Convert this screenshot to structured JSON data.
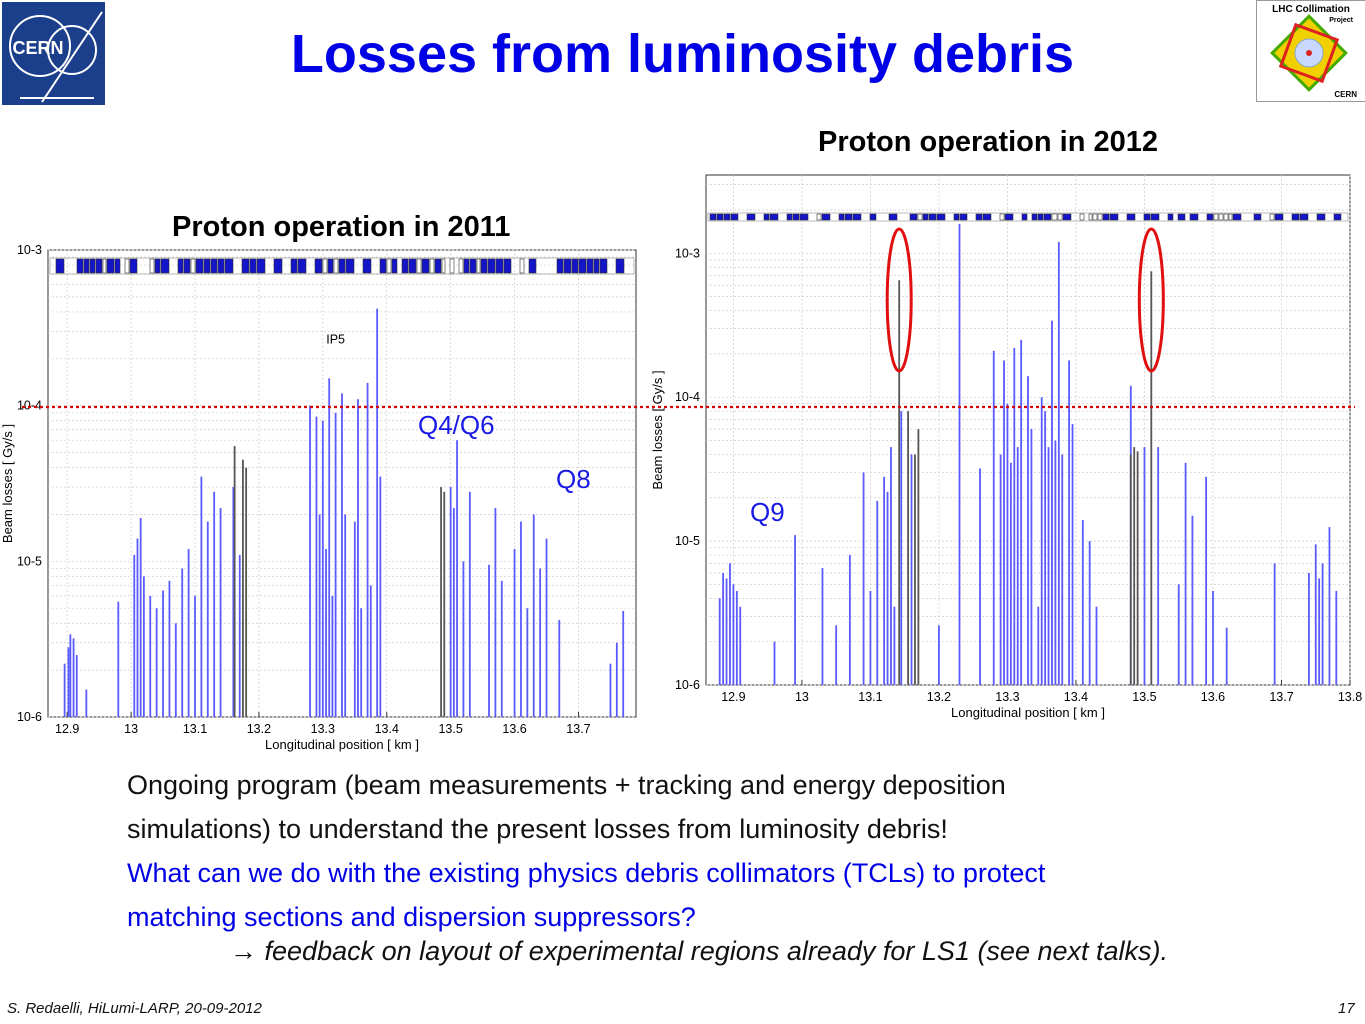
{
  "title": "Losses from luminosity debris",
  "logo_left": {
    "text": "CERN"
  },
  "logo_right": {
    "line1": "LHC Collimation",
    "line2": "Project",
    "line3": "CERN"
  },
  "colors": {
    "accent": "#0000e6",
    "threshold": "#dd0000",
    "bar_blue": "#5a5aff",
    "bar_gray": "#555555",
    "highlight_ring": "#e01010"
  },
  "chart_data": [
    {
      "type": "bar",
      "title": "Proton operation in 2011",
      "xlabel": "Longitudinal position [ km ]",
      "ylabel": "Beam losses [ Gy/s ]",
      "xlim": [
        12.87,
        13.79
      ],
      "ylim": [
        1e-06,
        0.001
      ],
      "y_scale": "log",
      "x_ticks": [
        12.9,
        13,
        13.1,
        13.2,
        13.3,
        13.4,
        13.5,
        13.6,
        13.7
      ],
      "y_ticks": [
        1e-06,
        1e-05,
        0.0001,
        0.001
      ],
      "y_tick_labels": [
        "10-6",
        "10-5",
        "10-4",
        "10-3"
      ],
      "grid": true,
      "threshold": 0.0001,
      "annotations": [
        {
          "text": "IP5",
          "x": 13.32,
          "y": 0.00025
        }
      ],
      "series": [
        {
          "color": "blue",
          "x": [
            12.896,
            12.902,
            12.905,
            12.91,
            12.915,
            12.93,
            12.98,
            13.005,
            13.01,
            13.015,
            13.02,
            13.03,
            13.04,
            13.05,
            13.06,
            13.07,
            13.08,
            13.09,
            13.1,
            13.11,
            13.12,
            13.13,
            13.14,
            13.16,
            13.17,
            13.28,
            13.29,
            13.295,
            13.3,
            13.305,
            13.31,
            13.315,
            13.32,
            13.33,
            13.335,
            13.35,
            13.355,
            13.36,
            13.37,
            13.375,
            13.385,
            13.39,
            13.5,
            13.505,
            13.51,
            13.52,
            13.53,
            13.56,
            13.57,
            13.58,
            13.6,
            13.61,
            13.62,
            13.63,
            13.64,
            13.65,
            13.67,
            13.75,
            13.76,
            13.77
          ],
          "values": [
            2.2e-06,
            2.8e-06,
            3.4e-06,
            3.2e-06,
            2.5e-06,
            1.5e-06,
            5.5e-06,
            1.1e-05,
            1.4e-05,
            1.9e-05,
            8e-06,
            6e-06,
            5e-06,
            6.5e-06,
            7.5e-06,
            4e-06,
            9e-06,
            1.2e-05,
            6e-06,
            3.5e-05,
            1.8e-05,
            2.8e-05,
            2.2e-05,
            3e-05,
            1.1e-05,
            0.0001,
            8.5e-05,
            2e-05,
            8e-05,
            1.2e-05,
            0.00015,
            6e-06,
            9e-05,
            0.00012,
            2e-05,
            1.8e-05,
            0.00011,
            5e-06,
            0.00014,
            7e-06,
            0.00042,
            3.5e-05,
            3e-05,
            2.2e-05,
            6e-05,
            1e-05,
            2.8e-05,
            9.5e-06,
            2.2e-05,
            7.5e-06,
            1.2e-05,
            1.8e-05,
            5e-06,
            2e-05,
            9e-06,
            1.4e-05,
            4.2e-06,
            2.2e-06,
            3e-06,
            4.8e-06
          ]
        },
        {
          "color": "gray",
          "x": [
            13.162,
            13.175,
            13.18,
            13.485,
            13.49
          ],
          "values": [
            5.5e-05,
            4.5e-05,
            4e-05,
            3e-05,
            2.8e-05
          ]
        }
      ],
      "layout_strip": true
    },
    {
      "type": "bar",
      "title": "Proton operation in 2012",
      "xlabel": "Longitudinal position [ km ]",
      "ylabel": "Beam losses [ Gy/s ]",
      "xlim": [
        12.86,
        13.8
      ],
      "ylim": [
        1e-06,
        0.0035
      ],
      "y_scale": "log",
      "x_ticks": [
        12.9,
        13,
        13.1,
        13.2,
        13.3,
        13.4,
        13.5,
        13.6,
        13.7,
        13.8
      ],
      "y_ticks": [
        1e-06,
        1e-05,
        0.0001,
        0.001
      ],
      "y_tick_labels": [
        "10-6",
        "10-5",
        "10-4",
        "10-3"
      ],
      "grid": true,
      "threshold": 0.0001,
      "highlight_x": [
        13.142,
        13.51
      ],
      "series": [
        {
          "color": "blue",
          "x": [
            12.88,
            12.885,
            12.89,
            12.895,
            12.9,
            12.905,
            12.91,
            12.96,
            12.99,
            13.03,
            13.05,
            13.07,
            13.09,
            13.1,
            13.11,
            13.12,
            13.125,
            13.13,
            13.135,
            13.145,
            13.16,
            13.2,
            13.23,
            13.26,
            13.28,
            13.29,
            13.295,
            13.3,
            13.305,
            13.31,
            13.315,
            13.32,
            13.33,
            13.335,
            13.345,
            13.35,
            13.355,
            13.36,
            13.365,
            13.37,
            13.375,
            13.38,
            13.39,
            13.395,
            13.41,
            13.42,
            13.43,
            13.48,
            13.5,
            13.52,
            13.55,
            13.56,
            13.57,
            13.59,
            13.6,
            13.62,
            13.69,
            13.74,
            13.75,
            13.755,
            13.76,
            13.77,
            13.78
          ],
          "values": [
            4e-06,
            6e-06,
            5.5e-06,
            7e-06,
            5e-06,
            4.5e-06,
            3.5e-06,
            2e-06,
            1.1e-05,
            6.5e-06,
            2.6e-06,
            8e-06,
            3e-05,
            4.5e-06,
            1.9e-05,
            2.8e-05,
            2.2e-05,
            4.5e-05,
            3.5e-06,
            8e-05,
            4e-05,
            2.6e-06,
            0.0016,
            3.2e-05,
            0.00021,
            4e-05,
            0.00018,
            9e-05,
            3.5e-05,
            0.00022,
            4.5e-05,
            0.00025,
            0.00014,
            6e-05,
            3.5e-06,
            0.0001,
            8e-05,
            4.5e-05,
            0.00034,
            5e-05,
            0.0012,
            4e-05,
            0.00018,
            6.5e-05,
            1.4e-05,
            1e-05,
            3.5e-06,
            0.00012,
            4.5e-05,
            4.5e-05,
            5e-06,
            3.5e-05,
            1.5e-05,
            2.8e-05,
            4.5e-06,
            2.5e-06,
            7e-06,
            6e-06,
            9.5e-06,
            5.5e-06,
            7e-06,
            1.25e-05,
            4.5e-06
          ]
        },
        {
          "color": "gray",
          "x": [
            13.142,
            13.155,
            13.165,
            13.17,
            13.48,
            13.485,
            13.49,
            13.51
          ],
          "values": [
            0.00065,
            8e-05,
            4e-05,
            6e-05,
            4e-05,
            4.5e-05,
            4.2e-05,
            0.00075
          ]
        }
      ],
      "layout_strip": true
    }
  ],
  "annotations": {
    "q4q6": "Q4/Q6",
    "q8": "Q8",
    "q9": "Q9"
  },
  "body": {
    "line1": "Ongoing program (beam measurements + tracking and energy deposition",
    "line2": "simulations) to understand the present losses from luminosity debris!",
    "line3": "What can we do with the existing physics debris collimators (TCLs) to protect",
    "line4": "matching sections and dispersion suppressors?",
    "feedback": "feedback on layout of experimental regions already for LS1 (see next talks)."
  },
  "footer": {
    "author": "S. Redaelli, HiLumi-LARP, 20-09-2012",
    "page": "17"
  }
}
